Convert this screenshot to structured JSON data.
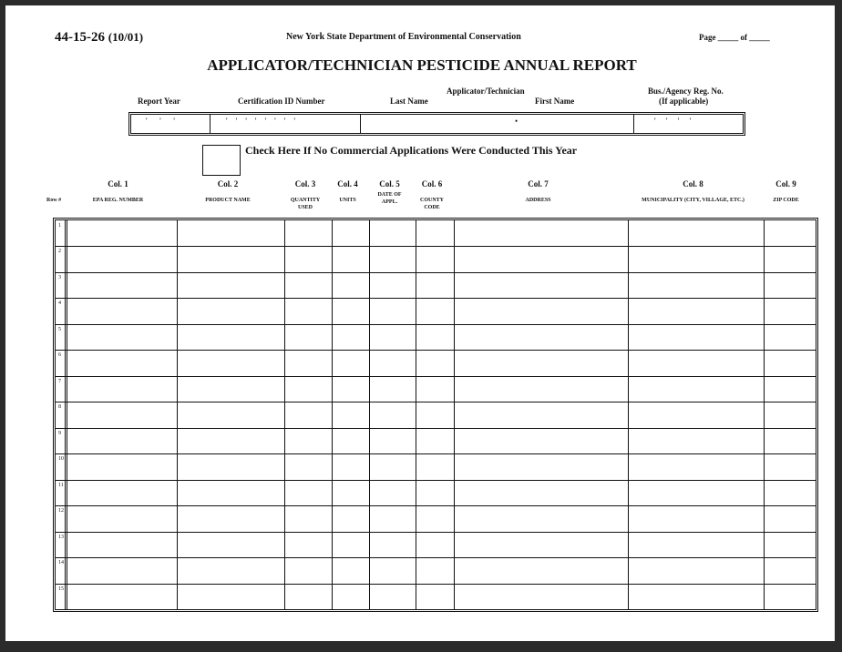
{
  "form_id": {
    "number": "44-15-26",
    "date": "(10/01)"
  },
  "agency": "New York State Department of Environmental Conservation",
  "page": {
    "label": "Page",
    "of": "of"
  },
  "title": "APPLICATOR/TECHNICIAN PESTICIDE ANNUAL REPORT",
  "header_fields": {
    "report_year": "Report Year",
    "cert_id": "Certification ID Number",
    "group": "Applicator/Technician",
    "last_name": "Last Name",
    "first_name": "First Name",
    "bus_reg": "Bus./Agency Reg. No.",
    "if_applicable": "(If applicable)"
  },
  "checkbox_label": "Check Here If No Commercial Applications Were Conducted This Year",
  "row_header": "Row #",
  "columns": [
    {
      "col": "Col. 1",
      "name": "EPA REG. NUMBER"
    },
    {
      "col": "Col. 2",
      "name": "PRODUCT NAME"
    },
    {
      "col": "Col. 3",
      "name": "QUANTITY USED"
    },
    {
      "col": "Col. 4",
      "name": "UNITS"
    },
    {
      "col": "Col. 5",
      "name": "DATE OF APPL."
    },
    {
      "col": "Col. 6",
      "name": "COUNTY CODE"
    },
    {
      "col": "Col. 7",
      "name": "ADDRESS"
    },
    {
      "col": "Col. 8",
      "name": "MUNICIPALITY (CITY, VILLAGE, ETC.)"
    },
    {
      "col": "Col. 9",
      "name": "ZIP CODE"
    }
  ],
  "rows": [
    "1",
    "2",
    "3",
    "4",
    "5",
    "6",
    "7",
    "8",
    "9",
    "10",
    "11",
    "12",
    "13",
    "14",
    "15"
  ]
}
